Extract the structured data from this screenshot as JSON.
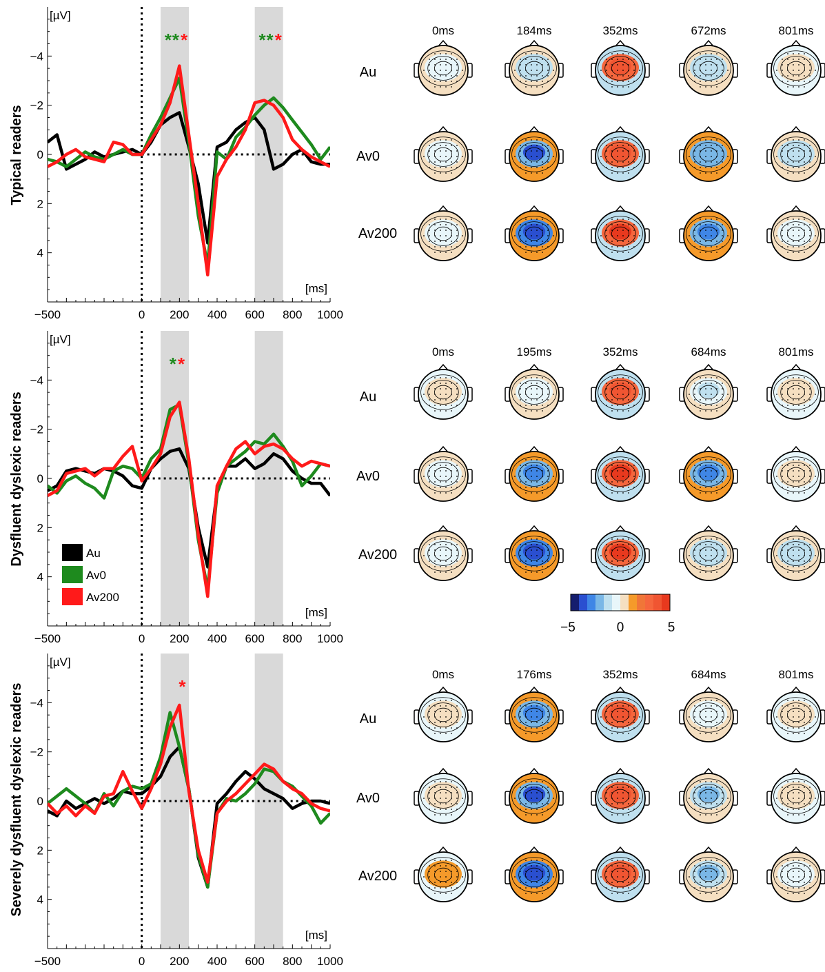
{
  "figure": {
    "conditions": [
      "Au",
      "Av0",
      "Av200"
    ],
    "colors": {
      "Au": "#000000",
      "Av0": "#1e8a1e",
      "Av200": "#ff1a1a",
      "shade": "#d9d9d9"
    },
    "legend": {
      "placement": "lower-left (second panel)",
      "entries": [
        "Au",
        "Av0",
        "Av200"
      ]
    },
    "colorbar": {
      "ticks": [
        "−5",
        "0",
        "5"
      ],
      "range": [
        -5,
        5
      ],
      "colors": [
        "#151d6e",
        "#2a4fd0",
        "#3f86e6",
        "#7ab7e6",
        "#bfe0ef",
        "#e8f6fa",
        "#f5dfc1",
        "#f59a2a",
        "#f07638",
        "#f5663d",
        "#f05532",
        "#e8391e"
      ]
    }
  },
  "chart_data": [
    {
      "type": "line",
      "ylabel": "Typical readers",
      "y_unit": "[µV]",
      "x_unit": "[ms]",
      "xlim": [
        -500,
        1000
      ],
      "ylim": [
        -6,
        6
      ],
      "y_inverted": true,
      "xticks": [
        "−500",
        "0",
        "200",
        "400",
        "600",
        "800",
        "1000"
      ],
      "yticks": [
        "−4",
        "−2",
        "0",
        "2",
        "4"
      ],
      "shaded_windows": [
        [
          100,
          250
        ],
        [
          600,
          750
        ]
      ],
      "stars": [
        {
          "text": "*",
          "color": "#1e8a1e",
          "x": 140,
          "y": -4.8
        },
        {
          "text": "*",
          "color": "#1e8a1e",
          "x": 180,
          "y": -4.8
        },
        {
          "text": "*",
          "color": "#ff1a1a",
          "x": 225,
          "y": -4.8
        },
        {
          "text": "*",
          "color": "#1e8a1e",
          "x": 640,
          "y": -4.8
        },
        {
          "text": "*",
          "color": "#1e8a1e",
          "x": 680,
          "y": -4.8
        },
        {
          "text": "*",
          "color": "#ff1a1a",
          "x": 725,
          "y": -4.8
        }
      ],
      "x": [
        -500,
        -450,
        -400,
        -350,
        -300,
        -250,
        -200,
        -150,
        -100,
        -50,
        0,
        50,
        100,
        150,
        200,
        250,
        300,
        350,
        400,
        450,
        500,
        550,
        600,
        650,
        700,
        750,
        800,
        850,
        900,
        950,
        1000
      ],
      "series": [
        {
          "name": "Au",
          "values": [
            -0.5,
            -0.8,
            0.6,
            0.4,
            0.2,
            -0.1,
            0.1,
            0,
            -0.1,
            -0.2,
            0,
            -0.5,
            -1.2,
            -1.5,
            -1.7,
            -0.3,
            1.2,
            3.6,
            -0.3,
            -0.5,
            -1,
            -1.3,
            -1.5,
            -1,
            0.6,
            0.4,
            0,
            -0.2,
            0.3,
            0.4,
            0.4
          ]
        },
        {
          "name": "Av0",
          "values": [
            0.2,
            0.3,
            0.5,
            0.2,
            -0.1,
            0.1,
            0.2,
            0,
            -0.2,
            0,
            0,
            -0.8,
            -1.5,
            -2.3,
            -3.1,
            -0.5,
            2.5,
            4.5,
            -0.1,
            0.2,
            -0.7,
            -1.1,
            -1.6,
            -2,
            -2.3,
            -1.9,
            -1.4,
            -0.9,
            -0.4,
            0.2,
            -0.3
          ]
        },
        {
          "name": "Av200",
          "values": [
            0.5,
            0.3,
            0,
            -0.2,
            0.1,
            0.2,
            0.3,
            -0.5,
            -0.4,
            0,
            0,
            -0.6,
            -1.2,
            -2.1,
            -3.6,
            -0.8,
            2,
            4.9,
            0.9,
            0.2,
            -0.3,
            -1,
            -2.1,
            -2.2,
            -2,
            -1.5,
            -0.6,
            -0.2,
            0.1,
            0.3,
            0.5
          ]
        }
      ],
      "topomaps": {
        "times": [
          "0ms",
          "184ms",
          "352ms",
          "672ms",
          "801ms"
        ],
        "rows": [
          {
            "label": "Au",
            "values": [
              -0.6,
              -1.5,
              3.8,
              -1.2,
              0.8
            ]
          },
          {
            "label": "Av0",
            "values": [
              -0.6,
              -3.4,
              3.6,
              -2.4,
              -1.2
            ]
          },
          {
            "label": "Av200",
            "values": [
              -0.5,
              -3.6,
              4.2,
              -3.2,
              -0.6
            ]
          }
        ]
      }
    },
    {
      "type": "line",
      "ylabel": "Dysfluent dyslexic readers",
      "y_unit": "[µV]",
      "x_unit": "[ms]",
      "xlim": [
        -500,
        1000
      ],
      "ylim": [
        -6,
        6
      ],
      "y_inverted": true,
      "xticks": [
        "−500",
        "0",
        "200",
        "400",
        "600",
        "800",
        "1000"
      ],
      "yticks": [
        "−4",
        "−2",
        "0",
        "2",
        "4"
      ],
      "shaded_windows": [
        [
          100,
          250
        ],
        [
          600,
          750
        ]
      ],
      "stars": [
        {
          "text": "*",
          "color": "#1e8a1e",
          "x": 165,
          "y": -4.8
        },
        {
          "text": "*",
          "color": "#ff1a1a",
          "x": 210,
          "y": -4.8
        }
      ],
      "x": [
        -500,
        -450,
        -400,
        -350,
        -300,
        -250,
        -200,
        -150,
        -100,
        -50,
        0,
        50,
        100,
        150,
        200,
        250,
        300,
        350,
        400,
        450,
        500,
        550,
        600,
        650,
        700,
        750,
        800,
        850,
        900,
        950,
        1000
      ],
      "series": [
        {
          "name": "Au",
          "values": [
            0.5,
            0.3,
            -0.3,
            -0.4,
            -0.3,
            -0.2,
            -0.4,
            -0.3,
            -0.1,
            0.3,
            0.4,
            -0.4,
            -0.8,
            -1.1,
            -1.2,
            -0.4,
            2,
            3.6,
            0.5,
            -0.5,
            -0.5,
            -0.8,
            -0.4,
            -0.6,
            -1,
            -0.8,
            -0.3,
            0,
            0.2,
            0.2,
            0.7
          ]
        },
        {
          "name": "Av0",
          "values": [
            0.3,
            0.6,
            0.1,
            -0.1,
            0.2,
            0.4,
            0.8,
            -0.3,
            -0.5,
            -0.4,
            0,
            -0.8,
            -1.2,
            -2.8,
            -3,
            -0.6,
            2.5,
            4.5,
            0.6,
            -0.5,
            -0.8,
            -1.1,
            -1.5,
            -1.4,
            -1.8,
            -1.3,
            -0.7,
            0.3,
            -0.1,
            -0.6,
            -0.5
          ]
        },
        {
          "name": "Av200",
          "values": [
            0.7,
            0.5,
            -0.2,
            -0.3,
            -0.4,
            -0.1,
            -0.4,
            -0.4,
            -0.9,
            -1.3,
            0.1,
            -0.4,
            -1,
            -2.5,
            -3.1,
            -0.8,
            2.3,
            4.8,
            0.3,
            -0.5,
            -1.2,
            -1.5,
            -1,
            -1.3,
            -1.4,
            -1.2,
            -0.8,
            -0.5,
            -0.7,
            -0.6,
            -0.5
          ]
        }
      ],
      "topomaps": {
        "times": [
          "0ms",
          "195ms",
          "352ms",
          "684ms",
          "801ms"
        ],
        "rows": [
          {
            "label": "Au",
            "values": [
              0.8,
              -0.8,
              3.6,
              -1,
              0.5
            ]
          },
          {
            "label": "Av0",
            "values": [
              -0.4,
              -3.2,
              4.2,
              -2.6,
              0.3
            ]
          },
          {
            "label": "Av200",
            "values": [
              -0.5,
              -3.6,
              4.4,
              -1.6,
              -1.2
            ]
          }
        ]
      }
    },
    {
      "type": "line",
      "ylabel": "Severely dysfluent dyslexic readers",
      "y_unit": "[µV]",
      "x_unit": "[ms]",
      "xlim": [
        -500,
        1000
      ],
      "ylim": [
        -6,
        6
      ],
      "y_inverted": true,
      "xticks": [
        "−500",
        "0",
        "200",
        "400",
        "600",
        "800",
        "1000"
      ],
      "yticks": [
        "−4",
        "−2",
        "0",
        "2",
        "4"
      ],
      "shaded_windows": [
        [
          100,
          250
        ],
        [
          600,
          750
        ]
      ],
      "stars": [
        {
          "text": "*",
          "color": "#ff1a1a",
          "x": 215,
          "y": -4.8
        }
      ],
      "x": [
        -500,
        -450,
        -400,
        -350,
        -300,
        -250,
        -200,
        -150,
        -100,
        -50,
        0,
        50,
        100,
        150,
        200,
        250,
        300,
        350,
        400,
        450,
        500,
        550,
        600,
        650,
        700,
        750,
        800,
        850,
        900,
        950,
        1000
      ],
      "series": [
        {
          "name": "Au",
          "values": [
            0.4,
            0.6,
            0,
            0.3,
            0.1,
            -0.1,
            0.1,
            -0.1,
            -0.4,
            -0.3,
            -0.3,
            -0.6,
            -1,
            -1.8,
            -2.2,
            -0.5,
            2.3,
            3.5,
            0.1,
            -0.3,
            -0.8,
            -1.2,
            -0.9,
            -0.5,
            -0.3,
            -0.1,
            0.3,
            0.1,
            0,
            0,
            0.1
          ]
        },
        {
          "name": "Av0",
          "values": [
            0.1,
            -0.2,
            -0.5,
            -0.2,
            0.1,
            0.5,
            -0.3,
            0.2,
            -0.4,
            -0.6,
            -0.5,
            -0.7,
            -1.8,
            -3.6,
            -2.2,
            -0.5,
            2.2,
            3.5,
            0.5,
            -0.1,
            0,
            -0.3,
            -0.7,
            -1.3,
            -1.2,
            -0.8,
            -0.6,
            -0.2,
            0.2,
            0.9,
            0.5
          ]
        },
        {
          "name": "Av200",
          "values": [
            0.1,
            0.5,
            0.2,
            0.6,
            0.2,
            0.5,
            -0.2,
            -0.3,
            -1.2,
            -0.4,
            0.3,
            -0.5,
            -1.5,
            -3,
            -3.9,
            -0.4,
            2,
            3.3,
            0.5,
            0,
            -0.3,
            -0.7,
            -1.1,
            -1.5,
            -1.3,
            -0.8,
            -0.5,
            -0.3,
            0.1,
            0.3,
            0.4
          ]
        }
      ],
      "topomaps": {
        "times": [
          "0ms",
          "176ms",
          "352ms",
          "684ms",
          "801ms"
        ],
        "rows": [
          {
            "label": "Au",
            "values": [
              0.6,
              -2.8,
              3.8,
              -0.6,
              0.5
            ]
          },
          {
            "label": "Av0",
            "values": [
              0.5,
              -3.4,
              3.6,
              -2,
              0.7
            ]
          },
          {
            "label": "Av200",
            "values": [
              1.4,
              -3.8,
              3.9,
              -1.8,
              -0.6
            ]
          }
        ]
      }
    }
  ]
}
